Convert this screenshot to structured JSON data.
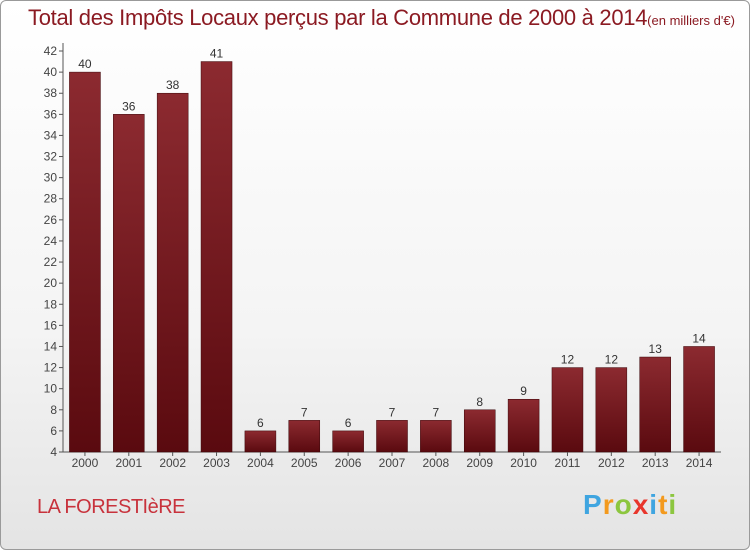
{
  "chart_data": {
    "type": "bar",
    "title": "Total des Impôts Locaux perçus par la Commune de 2000 à 2014",
    "unit": "(en milliers d'€)",
    "categories": [
      "2000",
      "2001",
      "2002",
      "2003",
      "2004",
      "2005",
      "2006",
      "2007",
      "2008",
      "2009",
      "2010",
      "2011",
      "2012",
      "2013",
      "2014"
    ],
    "values": [
      40,
      36,
      38,
      41,
      6,
      7,
      6,
      7,
      7,
      8,
      9,
      12,
      12,
      13,
      14
    ],
    "xlabel": "",
    "ylabel": "",
    "ylim": [
      4,
      42
    ],
    "yticks": [
      4,
      6,
      8,
      10,
      12,
      14,
      16,
      18,
      20,
      22,
      24,
      26,
      28,
      30,
      32,
      34,
      36,
      38,
      40,
      42
    ],
    "grid": false,
    "colors": {
      "bar_top": "#8c2a30",
      "bar_bottom": "#5a0a0f",
      "title": "#8b1a22",
      "commune": "#c8323c"
    }
  },
  "commune": "LA FORESTIèRE",
  "logo": {
    "letters": [
      "P",
      "r",
      "o",
      "x",
      "i",
      "t",
      "i"
    ],
    "colors": [
      "#3fa5e0",
      "#f39a1e",
      "#8cc63f",
      "#e8362c",
      "#3fa5e0",
      "#f39a1e",
      "#8cc63f"
    ]
  }
}
